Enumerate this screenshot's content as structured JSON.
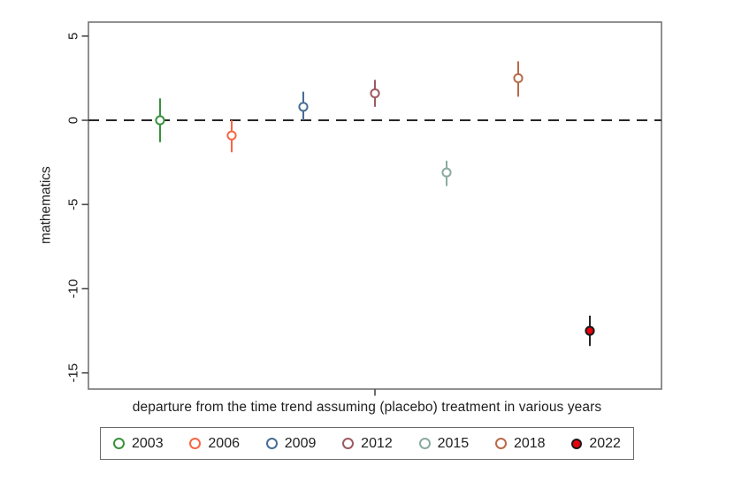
{
  "figure": {
    "background": "#ffffff",
    "frame_color": "#747474",
    "axis_text_color": "#1a1a1a"
  },
  "chart_data": {
    "type": "scatter",
    "title": "",
    "xlabel": "departure from the time trend assuming (placebo) treatment in various years",
    "ylabel": "mathematics",
    "ylim": [
      -15.96,
      5.83
    ],
    "yticks": [
      5,
      0,
      -5,
      -10,
      -15
    ],
    "grid": false,
    "zero_line": {
      "show": true,
      "style": "dashed",
      "color": "#262626"
    },
    "x_tick_count": 1,
    "legend_position": "bottom",
    "series": [
      {
        "name": "2003",
        "color": "#36923d",
        "value": 0.0,
        "ci": [
          -1.3,
          1.3
        ],
        "filled": false
      },
      {
        "name": "2006",
        "color": "#fa6542",
        "value": -0.9,
        "ci": [
          -1.9,
          0.0
        ],
        "filled": false
      },
      {
        "name": "2009",
        "color": "#476d97",
        "value": 0.8,
        "ci": [
          0.0,
          1.7
        ],
        "filled": false
      },
      {
        "name": "2012",
        "color": "#9d5a61",
        "value": 1.6,
        "ci": [
          0.8,
          2.4
        ],
        "filled": false
      },
      {
        "name": "2015",
        "color": "#8bab9e",
        "value": -3.1,
        "ci": [
          -3.9,
          -2.4
        ],
        "filled": false
      },
      {
        "name": "2018",
        "color": "#b96a49",
        "value": 2.5,
        "ci": [
          1.4,
          3.5
        ],
        "filled": false
      },
      {
        "name": "2022",
        "color": "#e8000d",
        "value": -12.5,
        "ci": [
          -13.4,
          -11.6
        ],
        "filled": true,
        "marker_edge": "#1a1a1a",
        "ci_color": "#262626"
      }
    ]
  }
}
